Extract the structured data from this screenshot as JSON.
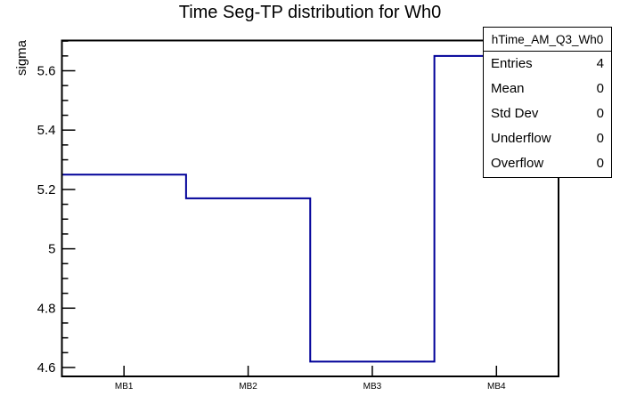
{
  "title": "Time Seg-TP distribution for Wh0",
  "chart_data": {
    "type": "line",
    "subtype": "step-histogram",
    "title": "Time Seg-TP distribution for Wh0",
    "xlabel": "",
    "ylabel": "sigma",
    "categories": [
      "MB1",
      "MB2",
      "MB3",
      "MB4"
    ],
    "values": [
      5.25,
      5.17,
      4.62,
      5.65
    ],
    "ylim": [
      4.57,
      5.702
    ],
    "yticks": [
      4.6,
      4.8,
      5.0,
      5.2,
      5.4,
      5.6
    ],
    "ytick_labels": [
      "4.6",
      "4.8",
      "5",
      "5.2",
      "5.4",
      "5.6"
    ],
    "y_minor_step": 0.05,
    "grid": false,
    "legend_position": "none",
    "line_color": "#000099",
    "frame_color": "#000000",
    "background_color": "#ffffff"
  },
  "stats_box": {
    "header": "hTime_AM_Q3_Wh0",
    "rows": [
      {
        "label": "Entries",
        "value": "4"
      },
      {
        "label": "Mean",
        "value": "0"
      },
      {
        "label": "Std Dev",
        "value": "0"
      },
      {
        "label": "Underflow",
        "value": "0"
      },
      {
        "label": "Overflow",
        "value": "0"
      }
    ]
  }
}
